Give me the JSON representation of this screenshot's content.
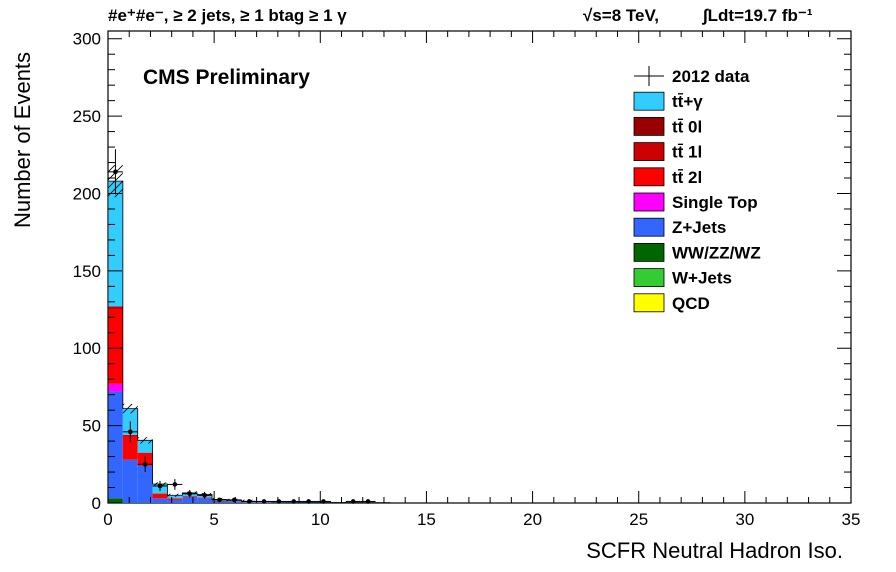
{
  "header": {
    "selection": "#e⁺#e⁻, ≥ 2 jets, ≥ 1 btag ≥ 1 γ",
    "energy": "√s=8 TeV,",
    "lumi": "∫Ldt=19.7 fb⁻¹"
  },
  "cms_label": "CMS Preliminary",
  "chart_data": {
    "type": "bar",
    "stacked": true,
    "xlabel": "SCFR Neutral Hadron Iso.",
    "ylabel": "Number of Events",
    "xlim": [
      0,
      35
    ],
    "ylim": [
      0,
      305
    ],
    "bin_width": 0.7,
    "x_ticks": [
      0,
      5,
      10,
      15,
      20,
      25,
      30,
      35
    ],
    "y_ticks": [
      0,
      50,
      100,
      150,
      200,
      250,
      300
    ],
    "bin_edges_start": [
      0,
      0.7,
      1.4,
      2.1,
      2.8,
      3.5,
      4.2,
      4.9,
      5.6,
      6.3,
      7.0,
      7.7,
      8.4,
      9.1,
      9.8,
      10.5,
      11.2,
      11.9,
      12.6
    ],
    "series": [
      {
        "name": "QCD",
        "color": "#ffff00",
        "values": [
          0,
          0,
          0,
          0,
          0,
          0,
          0,
          0,
          0,
          0,
          0,
          0,
          0,
          0,
          0,
          0,
          0,
          0,
          0
        ]
      },
      {
        "name": "W+Jets",
        "color": "#33cc33",
        "values": [
          0,
          0,
          0,
          0,
          0,
          0,
          0,
          0,
          0,
          0,
          0,
          0,
          0,
          0,
          0,
          0,
          0,
          0,
          0
        ]
      },
      {
        "name": "WW/ZZ/WZ",
        "color": "#006600",
        "values": [
          3,
          0,
          0,
          0,
          0,
          0,
          0,
          0,
          0,
          0,
          0,
          0,
          0,
          0,
          0,
          0,
          0,
          0,
          0
        ]
      },
      {
        "name": "Z+Jets",
        "color": "#3366ff",
        "values": [
          69,
          28,
          24,
          3,
          2,
          4,
          3,
          1,
          1,
          0.5,
          0.5,
          0.3,
          0.3,
          0.3,
          0.3,
          0.2,
          0.2,
          0.1,
          0.1
        ]
      },
      {
        "name": "Single Top",
        "color": "#ff00ff",
        "values": [
          5,
          0,
          0,
          0,
          0,
          0,
          0,
          0,
          0,
          0,
          0,
          0,
          0,
          0,
          0,
          0,
          0,
          0,
          0
        ]
      },
      {
        "name": "tt̄ 2l",
        "color": "#ff0000",
        "values": [
          48,
          15,
          8,
          3,
          1,
          0.5,
          0.5,
          0.3,
          0.2,
          0.1,
          0.1,
          0.1,
          0,
          0,
          0,
          0,
          0,
          0,
          0
        ]
      },
      {
        "name": "tt̄ 1l",
        "color": "#cc0000",
        "values": [
          2,
          1,
          0.5,
          0.3,
          0,
          0,
          0,
          0,
          0,
          0,
          0,
          0,
          0,
          0,
          0,
          0,
          0,
          0,
          0
        ]
      },
      {
        "name": "tt̄ 0l",
        "color": "#990000",
        "values": [
          0,
          0,
          0,
          0,
          0,
          0,
          0,
          0,
          0,
          0,
          0,
          0,
          0,
          0,
          0,
          0,
          0,
          0,
          0
        ]
      },
      {
        "name": "tt̄+γ",
        "color": "#33ccff",
        "values": [
          81,
          17,
          8,
          6,
          2,
          2,
          2,
          1,
          0.5,
          0.5,
          0.3,
          0.3,
          0.3,
          0.2,
          0.2,
          0.2,
          0.1,
          0.1,
          0.1
        ]
      }
    ],
    "data": {
      "name": "2012 data",
      "x": [
        0.35,
        1.05,
        1.75,
        2.45,
        3.15,
        3.85,
        4.55,
        5.25,
        5.95,
        6.65,
        7.35,
        8.05,
        8.75,
        9.45,
        10.15,
        11.55,
        12.25
      ],
      "y": [
        214,
        46,
        25,
        11,
        12,
        6,
        5,
        2,
        2,
        1,
        1,
        1,
        1,
        1,
        1,
        1,
        1
      ]
    },
    "legend_order": [
      "2012 data",
      "tt̄+γ",
      "tt̄ 0l",
      "tt̄ 1l",
      "tt̄ 2l",
      "Single Top",
      "Z+Jets",
      "WW/ZZ/WZ",
      "W+Jets",
      "QCD"
    ],
    "legend_position": "top-right"
  }
}
